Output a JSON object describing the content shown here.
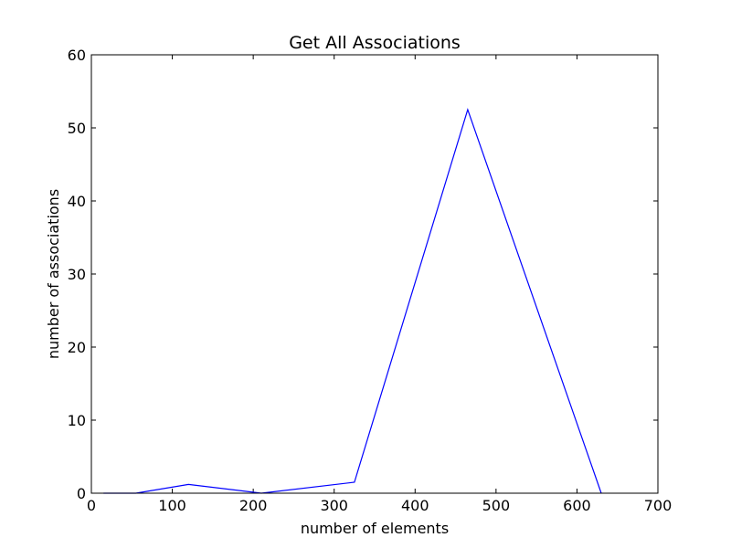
{
  "chart_data": {
    "type": "line",
    "title": "Get All Associations",
    "xlabel": "number of elements",
    "ylabel": "number of associations",
    "xlim": [
      0,
      700
    ],
    "ylim": [
      0,
      60
    ],
    "x_ticks": [
      0,
      100,
      200,
      300,
      400,
      500,
      600,
      700
    ],
    "y_ticks": [
      0,
      10,
      20,
      30,
      40,
      50,
      60
    ],
    "grid": false,
    "series": [
      {
        "color": "#0000ff",
        "x": [
          15,
          55,
          120,
          210,
          325,
          465,
          630
        ],
        "y": [
          0,
          0,
          1.2,
          0,
          1.5,
          52.5,
          0
        ]
      }
    ]
  }
}
